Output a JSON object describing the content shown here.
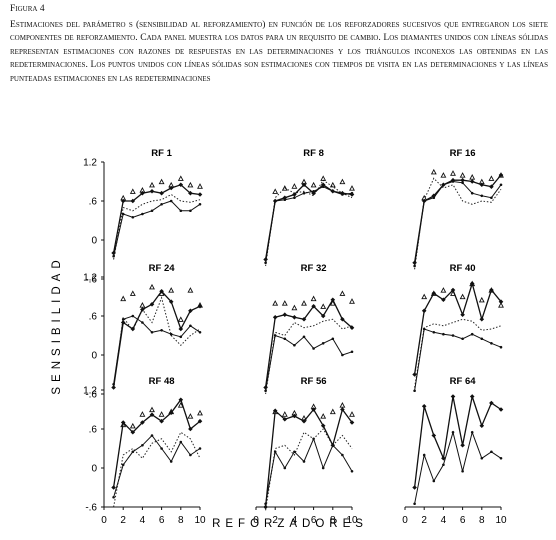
{
  "figure": {
    "label": "Figura 4",
    "caption": "Estimaciones del parámetro s (sensibilidad al reforzamiento) en función de los reforzadores sucesivos que entregaron los siete componentes de reforzamiento. Cada panel muestra los datos para un requisito de cambio. Los diamantes unidos con líneas sólidas representan estimaciones con razones de respuestas en las determinaciones y los triángulos inconexos las obtenidas en las redeterminaciones. Los puntos unidos con líneas sólidas son estimaciones con tiempos de visita en las determinaciones y las líneas punteadas estimaciones en las redeterminaciones"
  },
  "chart_data": {
    "type": "line",
    "ylabel": "SENSIBILIDAD",
    "xlabel": "REFORZADORES",
    "x_ticks": [
      "0",
      "2",
      "4",
      "6",
      "8",
      "10"
    ],
    "y_ticks": [
      "1.2",
      ".6",
      "0",
      "-.6"
    ],
    "xlim": [
      0,
      10
    ],
    "ylim": [
      -0.6,
      1.2
    ],
    "x": [
      1,
      2,
      3,
      4,
      5,
      6,
      7,
      8,
      9,
      10
    ],
    "panels": [
      {
        "title": "RF 1",
        "response_ratio_determination": [
          -0.2,
          0.6,
          0.6,
          0.72,
          0.75,
          0.72,
          0.8,
          0.85,
          0.72,
          0.7
        ],
        "response_ratio_redetermination": [
          null,
          0.6,
          0.7,
          0.72,
          0.8,
          0.85,
          0.8,
          0.9,
          0.8,
          0.78
        ],
        "visit_time_determination": [
          -0.25,
          0.4,
          0.35,
          0.4,
          0.45,
          0.55,
          0.6,
          0.45,
          0.45,
          0.55
        ],
        "visit_time_redetermination": [
          -0.3,
          0.5,
          0.45,
          0.55,
          0.6,
          0.62,
          0.7,
          0.6,
          0.58,
          0.62
        ]
      },
      {
        "title": "RF 8",
        "response_ratio_determination": [
          -0.3,
          0.6,
          0.65,
          0.7,
          0.85,
          0.72,
          0.85,
          0.75,
          0.72,
          0.7
        ],
        "response_ratio_redetermination": [
          null,
          0.7,
          0.75,
          0.78,
          0.85,
          0.8,
          0.9,
          0.8,
          0.85,
          0.75
        ],
        "visit_time_determination": [
          -0.35,
          0.6,
          0.62,
          0.65,
          0.72,
          0.75,
          0.82,
          0.75,
          0.7,
          0.72
        ],
        "visit_time_redetermination": [
          -0.4,
          0.65,
          0.8,
          0.72,
          0.75,
          0.68,
          0.92,
          0.82,
          0.72,
          0.65
        ]
      },
      {
        "title": "RF 16",
        "response_ratio_determination": [
          -0.35,
          0.6,
          0.68,
          0.85,
          0.92,
          0.92,
          0.9,
          0.85,
          0.82,
          1.0
        ],
        "response_ratio_redetermination": [
          null,
          0.6,
          1.0,
          0.95,
          0.98,
          0.95,
          0.92,
          0.85,
          0.9,
          0.95
        ],
        "visit_time_determination": [
          -0.4,
          0.6,
          0.65,
          0.85,
          0.9,
          0.88,
          0.72,
          0.68,
          0.65,
          0.85
        ],
        "visit_time_redetermination": [
          -0.45,
          0.62,
          0.95,
          0.8,
          0.85,
          0.6,
          0.55,
          0.6,
          0.58,
          0.78
        ]
      },
      {
        "title": "RF 24",
        "response_ratio_determination": [
          -0.5,
          0.5,
          0.4,
          0.7,
          0.78,
          0.98,
          0.82,
          0.4,
          0.68,
          0.75
        ],
        "response_ratio_redetermination": [
          null,
          0.82,
          0.9,
          0.72,
          1.0,
          0.9,
          0.95,
          0.5,
          0.95,
          0.72
        ],
        "visit_time_determination": [
          -0.45,
          0.55,
          0.6,
          0.5,
          0.35,
          0.38,
          0.32,
          0.28,
          0.45,
          0.35
        ],
        "visit_time_redetermination": [
          -0.5,
          0.58,
          0.38,
          0.7,
          0.5,
          0.88,
          0.3,
          0.15,
          0.3,
          0.4
        ]
      },
      {
        "title": "RF 32",
        "response_ratio_determination": [
          -0.5,
          0.58,
          0.62,
          0.58,
          0.55,
          0.75,
          0.6,
          0.85,
          0.55,
          0.42
        ],
        "response_ratio_redetermination": [
          null,
          0.75,
          0.75,
          0.68,
          0.75,
          0.82,
          0.7,
          0.75,
          0.9,
          0.78
        ],
        "visit_time_determination": [
          -0.55,
          0.3,
          0.25,
          0.15,
          0.28,
          0.1,
          0.18,
          0.25,
          0.0,
          0.05
        ],
        "visit_time_redetermination": [
          -0.6,
          0.35,
          0.3,
          0.5,
          0.42,
          0.45,
          0.52,
          0.55,
          0.4,
          0.45
        ]
      },
      {
        "title": "RF 40",
        "response_ratio_determination": [
          -0.3,
          0.68,
          0.95,
          0.85,
          1.0,
          0.62,
          1.1,
          0.55,
          1.0,
          0.82
        ],
        "response_ratio_redetermination": [
          null,
          0.85,
          0.9,
          0.95,
          0.9,
          0.85,
          1.05,
          0.8,
          0.95,
          0.72
        ],
        "visit_time_determination": [
          -0.55,
          0.4,
          0.35,
          0.32,
          0.3,
          0.25,
          0.32,
          0.25,
          0.18,
          0.12
        ],
        "visit_time_redetermination": [
          -0.5,
          0.42,
          0.48,
          0.45,
          0.5,
          0.55,
          0.52,
          0.38,
          0.4,
          0.45
        ]
      },
      {
        "title": "RF 48",
        "response_ratio_determination": [
          -0.3,
          0.7,
          0.55,
          0.7,
          0.82,
          0.72,
          0.85,
          1.05,
          0.6,
          0.72
        ],
        "response_ratio_redetermination": [
          null,
          0.62,
          0.6,
          0.78,
          0.85,
          0.78,
          0.82,
          0.92,
          0.75,
          0.8
        ],
        "visit_time_determination": [
          -0.45,
          0.05,
          0.25,
          0.35,
          0.5,
          0.3,
          0.1,
          0.4,
          0.2,
          0.3
        ],
        "visit_time_redetermination": [
          -0.6,
          0.2,
          0.3,
          0.15,
          0.38,
          0.45,
          0.25,
          0.55,
          0.45,
          0.15
        ]
      },
      {
        "title": "RF 56",
        "response_ratio_determination": [
          -0.6,
          0.88,
          0.75,
          0.8,
          0.72,
          0.9,
          0.65,
          0.35,
          0.9,
          0.7
        ],
        "response_ratio_redetermination": [
          null,
          0.82,
          0.78,
          0.8,
          0.72,
          0.9,
          0.75,
          0.82,
          0.92,
          0.78
        ],
        "visit_time_determination": [
          -0.55,
          0.25,
          0.0,
          0.25,
          0.1,
          0.45,
          0.0,
          0.35,
          0.2,
          -0.05
        ],
        "visit_time_redetermination": [
          -0.65,
          0.3,
          0.35,
          0.2,
          0.55,
          0.45,
          0.6,
          0.35,
          0.5,
          0.3
        ]
      },
      {
        "title": "RF 64",
        "response_ratio_determination": [
          -0.3,
          0.95,
          0.5,
          0.15,
          1.1,
          0.35,
          1.1,
          0.65,
          1.0,
          0.9
        ],
        "response_ratio_redetermination": [
          null,
          null,
          null,
          null,
          null,
          null,
          null,
          null,
          null,
          null
        ],
        "visit_time_determination": [
          -0.55,
          0.2,
          -0.2,
          0.05,
          0.55,
          -0.05,
          0.55,
          0.15,
          0.25,
          0.15
        ],
        "visit_time_redetermination": [
          null,
          null,
          null,
          null,
          null,
          null,
          null,
          null,
          null,
          null
        ]
      }
    ]
  }
}
